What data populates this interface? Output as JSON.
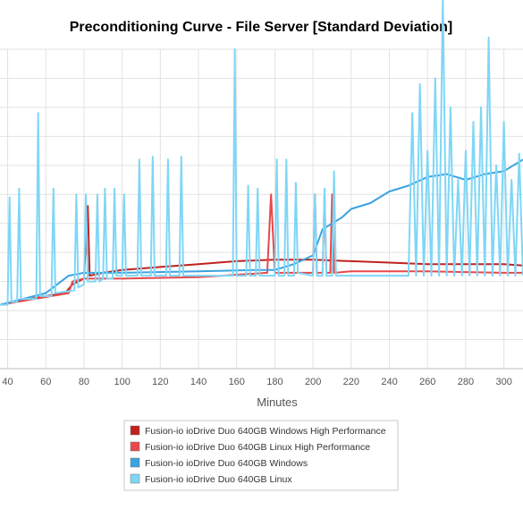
{
  "chart_data": {
    "type": "line",
    "title": "Preconditioning Curve - File Server [Standard Deviation]",
    "xlabel": "Minutes",
    "ylabel": "",
    "xlim": [
      36,
      310
    ],
    "ylim": [
      0,
      11
    ],
    "x_ticks": [
      40,
      60,
      80,
      100,
      120,
      140,
      160,
      180,
      200,
      220,
      240,
      260,
      280,
      300
    ],
    "grid": true,
    "legend": "bottom-center",
    "series": [
      {
        "name": "Fusion-io ioDrive Duo 640GB Windows High Performance",
        "color": "#c0211f",
        "x": [
          36,
          60,
          70,
          74,
          80,
          82,
          83,
          90,
          100,
          120,
          140,
          160,
          180,
          200,
          220,
          240,
          260,
          280,
          300,
          310
        ],
        "y": [
          2.2,
          2.5,
          2.6,
          2.9,
          3.1,
          5.6,
          3.2,
          3.3,
          3.4,
          3.5,
          3.6,
          3.7,
          3.75,
          3.75,
          3.7,
          3.65,
          3.6,
          3.6,
          3.6,
          3.55
        ]
      },
      {
        "name": "Fusion-io ioDrive Duo 640GB Linux High Performance",
        "color": "#e8484a",
        "x": [
          36,
          72,
          74,
          80,
          100,
          140,
          176,
          178,
          180,
          200,
          201,
          202,
          205,
          206,
          207,
          209,
          210,
          211,
          220,
          260,
          300,
          310
        ],
        "y": [
          2.2,
          2.6,
          3.0,
          3.1,
          3.1,
          3.15,
          3.3,
          6.0,
          3.3,
          3.3,
          6.0,
          3.3,
          3.3,
          6.0,
          3.3,
          3.3,
          6.0,
          3.3,
          3.35,
          3.35,
          3.3,
          3.3
        ]
      },
      {
        "name": "Fusion-io ioDrive Duo 640GB Windows",
        "color": "#3aa3df",
        "x": [
          36,
          60,
          72,
          80,
          100,
          140,
          170,
          180,
          190,
          200,
          205,
          210,
          215,
          220,
          230,
          240,
          250,
          260,
          270,
          280,
          290,
          300,
          310
        ],
        "y": [
          2.2,
          2.6,
          3.2,
          3.3,
          3.3,
          3.35,
          3.4,
          3.4,
          3.6,
          3.9,
          4.8,
          5.0,
          5.2,
          5.5,
          5.7,
          6.1,
          6.3,
          6.6,
          6.7,
          6.5,
          6.7,
          6.8,
          7.2
        ]
      },
      {
        "name": "Fusion-io ioDrive Duo 640GB Linux",
        "color": "#7fd6f6",
        "x": [
          36,
          40,
          41,
          42,
          45,
          46,
          47,
          55,
          56,
          57,
          58,
          63,
          64,
          65,
          75,
          76,
          77,
          80,
          81,
          82,
          84,
          86,
          87,
          88,
          90,
          91,
          92,
          95,
          96,
          97,
          100,
          101,
          102,
          108,
          109,
          110,
          115,
          116,
          117,
          123,
          124,
          125,
          130,
          131,
          132,
          158,
          159,
          160,
          165,
          166,
          167,
          170,
          171,
          172,
          180,
          181,
          182,
          185,
          186,
          187,
          190,
          191,
          192,
          200,
          201,
          202,
          205,
          206,
          207,
          210,
          211,
          212,
          250,
          252,
          254,
          256,
          258,
          260,
          262,
          264,
          266,
          268,
          270,
          272,
          274,
          276,
          278,
          280,
          282,
          284,
          286,
          288,
          290,
          292,
          294,
          296,
          298,
          300,
          302,
          304,
          306,
          308,
          310
        ],
        "y": [
          2.2,
          2.2,
          5.9,
          2.3,
          2.3,
          6.2,
          2.4,
          2.4,
          8.8,
          2.5,
          2.5,
          2.5,
          6.2,
          2.6,
          2.7,
          6.0,
          2.8,
          2.9,
          6.0,
          3.0,
          3.0,
          3.0,
          6.0,
          3.0,
          3.1,
          6.2,
          3.1,
          3.1,
          6.2,
          3.2,
          3.2,
          6.0,
          3.2,
          3.2,
          7.2,
          3.2,
          3.2,
          7.3,
          3.2,
          3.2,
          7.2,
          3.2,
          3.2,
          7.3,
          3.2,
          3.2,
          11.0,
          3.2,
          3.2,
          6.3,
          3.2,
          3.2,
          6.2,
          3.2,
          3.2,
          7.2,
          3.2,
          3.2,
          7.2,
          3.2,
          3.2,
          6.4,
          3.3,
          3.2,
          6.0,
          3.2,
          3.2,
          6.2,
          3.2,
          3.2,
          6.8,
          3.2,
          3.2,
          8.8,
          3.2,
          9.8,
          3.2,
          7.5,
          3.2,
          10.0,
          3.2,
          12.8,
          3.2,
          9.0,
          3.2,
          6.5,
          3.2,
          7.5,
          3.2,
          8.5,
          3.2,
          9.0,
          3.2,
          11.4,
          3.2,
          7.0,
          3.2,
          8.5,
          3.2,
          6.5,
          3.2,
          7.4,
          3.2
        ]
      }
    ]
  }
}
